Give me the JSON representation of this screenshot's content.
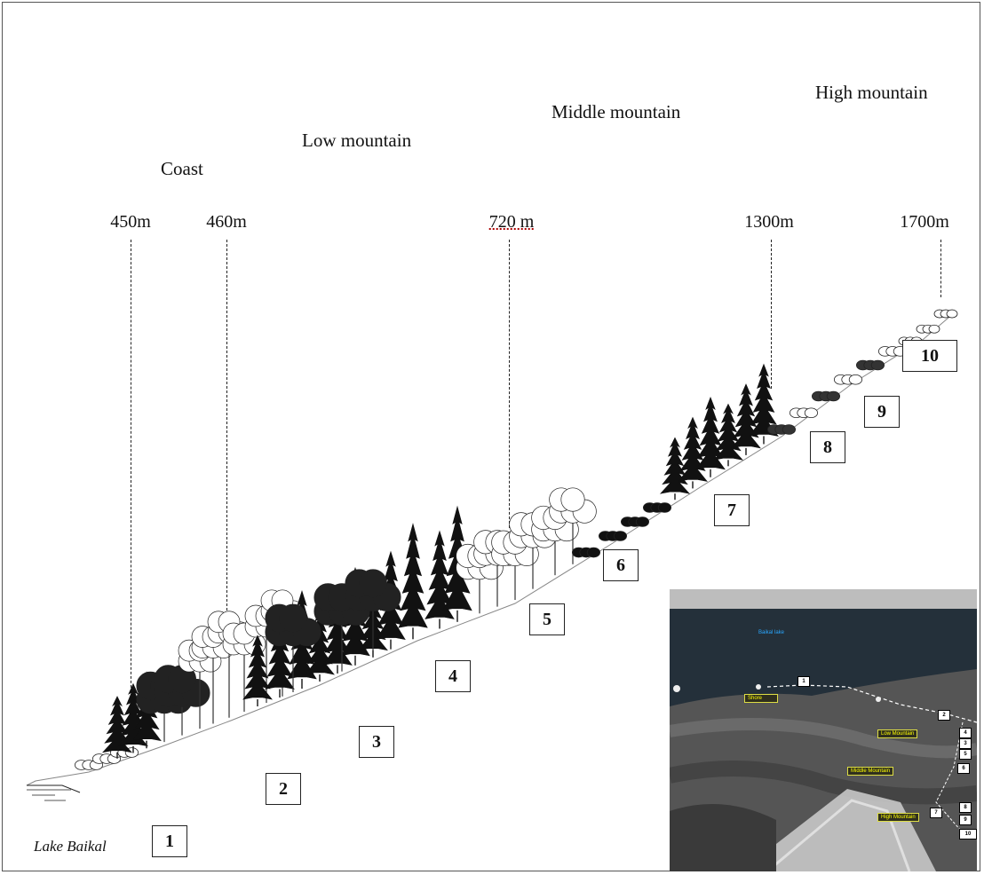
{
  "zones": {
    "coast": "Coast",
    "low": "Low mountain",
    "middle": "Middle mountain",
    "high": "High mountain"
  },
  "elevations": [
    "450m",
    "460m",
    "720 m",
    "1300m",
    "1700m"
  ],
  "sites": [
    "1",
    "2",
    "3",
    "4",
    "5",
    "6",
    "7",
    "8",
    "9",
    "10"
  ],
  "lake_label": "Lake Baikal",
  "inset": {
    "lake_label": "Baikal lake",
    "zone_labels": [
      "Shore",
      "Low Mountain",
      "Middle Mountain",
      "High Mountain"
    ],
    "site_numbers": [
      "1",
      "2",
      "3",
      "4",
      "5",
      "6",
      "7",
      "8",
      "9",
      "10"
    ]
  }
}
